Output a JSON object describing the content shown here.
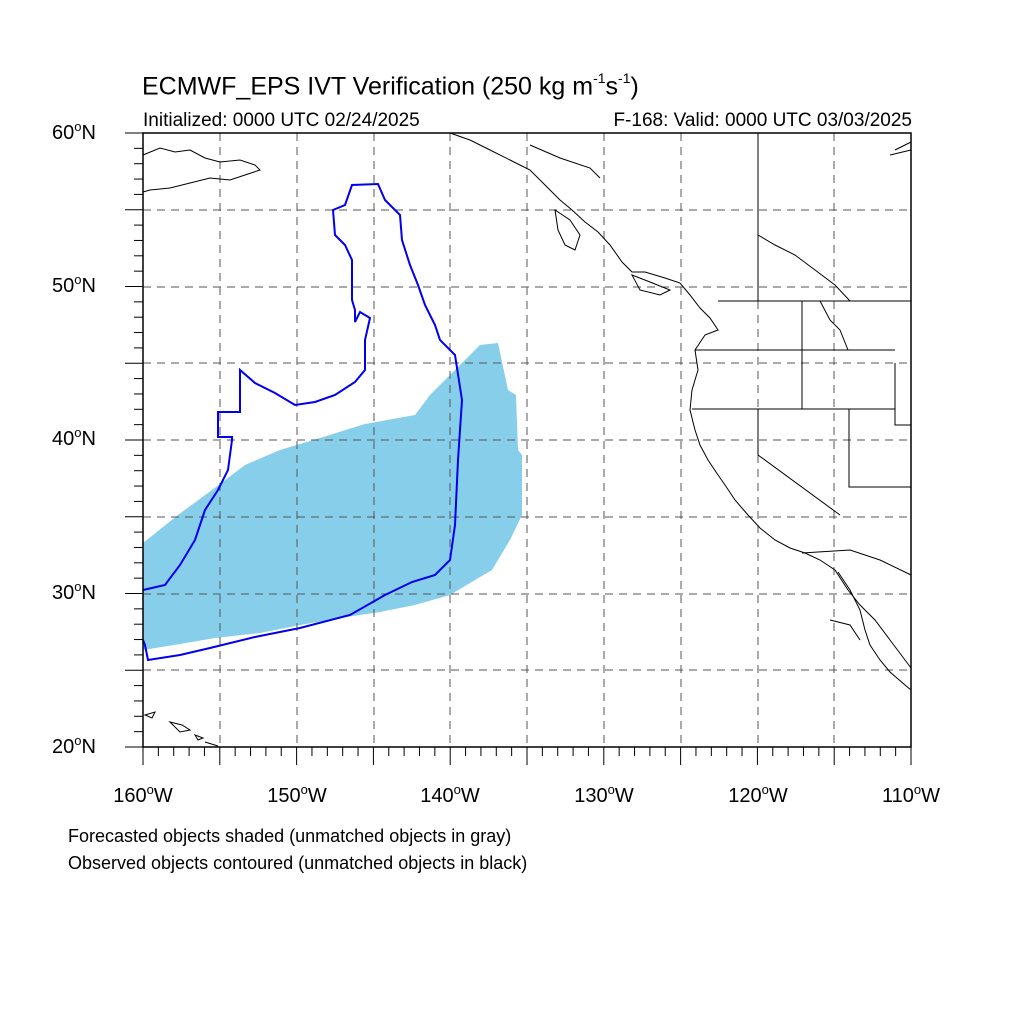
{
  "header": {
    "title_main": "ECMWF_EPS IVT Verification (250 kg m",
    "title_exp1": "-1",
    "title_mid": "s",
    "title_exp2": "-1",
    "title_end": ")",
    "initialized": "Initialized: 0000 UTC 02/24/2025",
    "valid": "F-168: Valid: 0000 UTC 03/03/2025"
  },
  "axes": {
    "lat_labels": [
      {
        "num": "60",
        "hem": "N"
      },
      {
        "num": "50",
        "hem": "N"
      },
      {
        "num": "40",
        "hem": "N"
      },
      {
        "num": "30",
        "hem": "N"
      },
      {
        "num": "20",
        "hem": "N"
      }
    ],
    "lon_labels": [
      {
        "num": "160",
        "hem": "W"
      },
      {
        "num": "150",
        "hem": "W"
      },
      {
        "num": "140",
        "hem": "W"
      },
      {
        "num": "130",
        "hem": "W"
      },
      {
        "num": "120",
        "hem": "W"
      },
      {
        "num": "110",
        "hem": "W"
      }
    ]
  },
  "footer": {
    "line1": "Forecasted objects shaded (unmatched objects in gray)",
    "line2": "Observed objects contoured (unmatched objects in black)"
  },
  "colors": {
    "forecast_fill": "#87ceeb",
    "observed_contour": "#0000ee",
    "coastline": "#000000",
    "gridline": "#555555"
  }
}
